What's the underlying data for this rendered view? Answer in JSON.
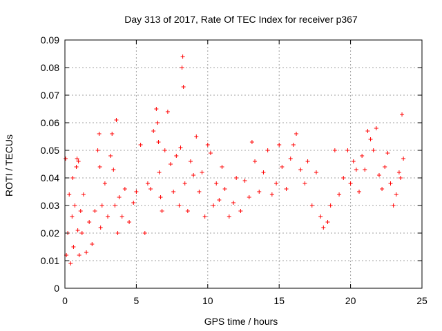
{
  "chart_data": {
    "type": "scatter",
    "title": "Day 313 of 2017, Rate Of TEC Index for receiver p367",
    "xlabel": "GPS time / hours",
    "ylabel": "ROTI / TECUs",
    "xlim": [
      0,
      25
    ],
    "ylim": [
      0,
      0.09
    ],
    "x_ticks": [
      0,
      5,
      10,
      15,
      20,
      25
    ],
    "x_tick_labels": [
      "0",
      "5",
      "10",
      "15",
      "20",
      "25"
    ],
    "y_ticks": [
      0,
      0.01,
      0.02,
      0.03,
      0.04,
      0.05,
      0.06,
      0.07,
      0.08,
      0.09
    ],
    "y_tick_labels": [
      "0",
      "0.01",
      "0.02",
      "0.03",
      "0.04",
      "0.05",
      "0.06",
      "0.07",
      "0.08",
      "0.09"
    ],
    "grid": true,
    "marker": "+",
    "colors": {
      "series": "#ff0000",
      "grid": "#a0a0a0",
      "axis": "#000000"
    },
    "series": [
      {
        "x": [
          0.05,
          0.1,
          0.2,
          0.3,
          0.4,
          0.5,
          0.55,
          0.6,
          0.7,
          0.8,
          0.85,
          0.9,
          0.95,
          1.0,
          1.1,
          1.2,
          1.3,
          1.5,
          1.7,
          1.9,
          2.1,
          2.3,
          2.4,
          2.45,
          2.5,
          2.6,
          2.8,
          3.0,
          3.2,
          3.3,
          3.4,
          3.5,
          3.6,
          3.7,
          3.8,
          4.0,
          4.2,
          4.5,
          4.8,
          5.0,
          5.3,
          5.6,
          5.8,
          6.0,
          6.2,
          6.4,
          6.5,
          6.55,
          6.6,
          6.7,
          6.8,
          7.0,
          7.2,
          7.4,
          7.6,
          7.8,
          8.0,
          8.1,
          8.2,
          8.25,
          8.3,
          8.4,
          8.6,
          8.8,
          9.0,
          9.2,
          9.4,
          9.6,
          9.8,
          10.0,
          10.2,
          10.4,
          10.6,
          10.8,
          11.0,
          11.2,
          11.5,
          11.8,
          12.0,
          12.3,
          12.6,
          12.9,
          13.1,
          13.3,
          13.6,
          13.9,
          14.2,
          14.5,
          14.8,
          15.0,
          15.2,
          15.5,
          15.8,
          16.0,
          16.2,
          16.5,
          16.8,
          17.0,
          17.3,
          17.6,
          17.9,
          18.1,
          18.4,
          18.6,
          18.9,
          19.2,
          19.5,
          19.8,
          20.0,
          20.2,
          20.4,
          20.6,
          20.8,
          21.0,
          21.2,
          21.4,
          21.6,
          21.8,
          22.0,
          22.2,
          22.4,
          22.6,
          22.8,
          23.0,
          23.2,
          23.4,
          23.5,
          23.6,
          23.7
        ],
        "y": [
          0.047,
          0.012,
          0.02,
          0.034,
          0.009,
          0.026,
          0.04,
          0.015,
          0.03,
          0.044,
          0.047,
          0.021,
          0.046,
          0.012,
          0.028,
          0.02,
          0.034,
          0.013,
          0.024,
          0.016,
          0.028,
          0.05,
          0.056,
          0.044,
          0.022,
          0.03,
          0.038,
          0.026,
          0.048,
          0.056,
          0.043,
          0.03,
          0.061,
          0.02,
          0.033,
          0.026,
          0.036,
          0.024,
          0.031,
          0.035,
          0.052,
          0.02,
          0.038,
          0.036,
          0.057,
          0.065,
          0.06,
          0.053,
          0.042,
          0.033,
          0.028,
          0.05,
          0.064,
          0.045,
          0.035,
          0.048,
          0.03,
          0.051,
          0.08,
          0.084,
          0.073,
          0.038,
          0.028,
          0.046,
          0.041,
          0.055,
          0.035,
          0.042,
          0.026,
          0.052,
          0.049,
          0.03,
          0.038,
          0.032,
          0.044,
          0.036,
          0.026,
          0.031,
          0.04,
          0.028,
          0.039,
          0.033,
          0.053,
          0.046,
          0.035,
          0.042,
          0.05,
          0.034,
          0.038,
          0.052,
          0.044,
          0.036,
          0.047,
          0.052,
          0.056,
          0.043,
          0.038,
          0.046,
          0.03,
          0.042,
          0.026,
          0.022,
          0.024,
          0.03,
          0.05,
          0.034,
          0.04,
          0.05,
          0.038,
          0.046,
          0.043,
          0.035,
          0.048,
          0.043,
          0.057,
          0.054,
          0.05,
          0.058,
          0.041,
          0.036,
          0.044,
          0.049,
          0.038,
          0.03,
          0.034,
          0.042,
          0.04,
          0.063,
          0.047
        ]
      }
    ]
  }
}
